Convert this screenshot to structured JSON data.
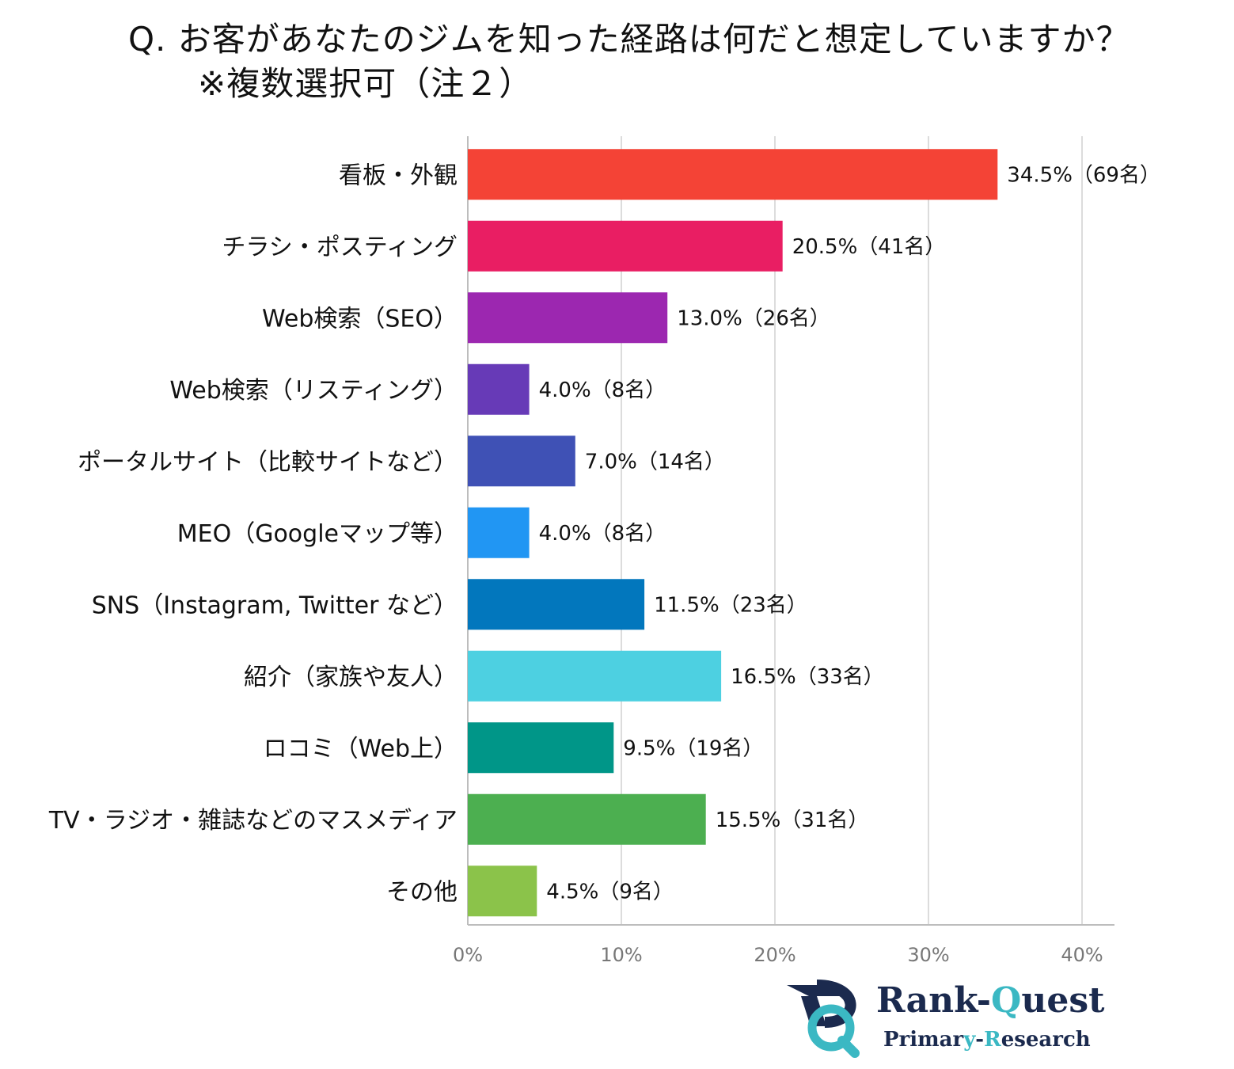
{
  "title": {
    "line1": "Q.  お客があなたのジムを知った経路は何だと想定していますか？",
    "line2": "※複数選択可（注２）"
  },
  "chart_data": {
    "type": "bar",
    "orientation": "horizontal",
    "categories": [
      "看板・外観",
      "チラシ・ポスティング",
      "Web検索（SEO）",
      "Web検索（リスティング）",
      "ポータルサイト（比較サイトなど）",
      "MEO（Googleマップ等）",
      "SNS（Instagram, Twitter など）",
      "紹介（家族や友人）",
      "ロコミ（Web上）",
      "TV・ラジオ・雑誌などのマスメディア",
      "その他"
    ],
    "values": [
      34.5,
      20.5,
      13.0,
      4.0,
      7.0,
      4.0,
      11.5,
      16.5,
      9.5,
      15.5,
      4.5
    ],
    "data_labels": [
      "34.5%（69名）",
      "20.5%（41名）",
      "13.0%（26名）",
      "4.0%（8名）",
      "7.0%（14名）",
      "4.0%（8名）",
      "11.5%（23名）",
      "16.5%（33名）",
      "9.5%（19名）",
      "15.5%（31名）",
      "4.5%（9名）"
    ],
    "colors": [
      "#f44336",
      "#e91e63",
      "#9c27b0",
      "#673ab7",
      "#3f51b5",
      "#2196f3",
      "#0277bd",
      "#4dd0e1",
      "#009688",
      "#4caf50",
      "#8bc34a"
    ],
    "xlim": [
      0,
      40
    ],
    "xticks": [
      0,
      10,
      20,
      30,
      40
    ],
    "xtick_labels": [
      "0%",
      "10%",
      "20%",
      "30%",
      "40%"
    ],
    "grid": true
  },
  "logo": {
    "name_part1": "Rank-",
    "name_part2": "Q",
    "name_part3": "uest",
    "sub_part1": "Primar",
    "sub_part2": "y",
    "sub_part3": "-",
    "sub_part4": "R",
    "sub_part5": "esearch"
  }
}
